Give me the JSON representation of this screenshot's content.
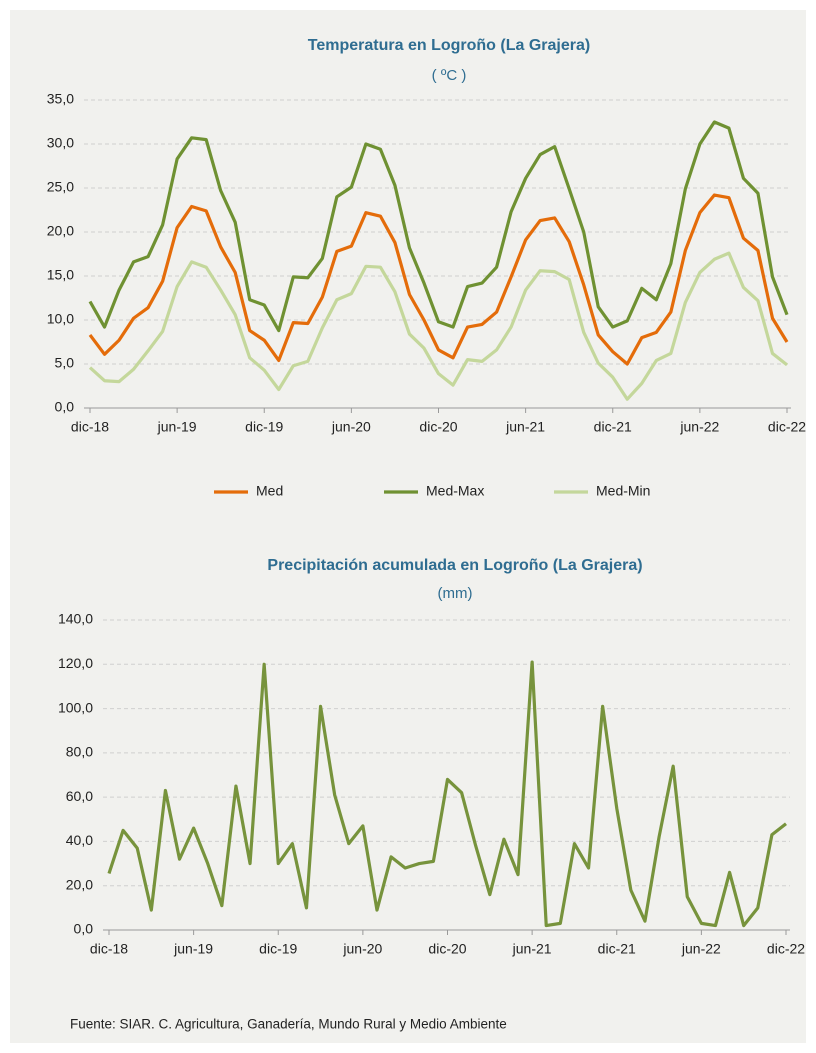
{
  "chart_data": [
    {
      "type": "line",
      "title": "Temperatura en Logroño (La Grajera)",
      "subtitle": "( ºC )",
      "categories": [
        "dic-18",
        null,
        null,
        null,
        null,
        null,
        "jun-19",
        null,
        null,
        null,
        null,
        null,
        "dic-19",
        null,
        null,
        null,
        null,
        null,
        "jun-20",
        null,
        null,
        null,
        null,
        null,
        "dic-20",
        null,
        null,
        null,
        null,
        null,
        "jun-21",
        null,
        null,
        null,
        null,
        null,
        "dic-21",
        null,
        null,
        null,
        null,
        null,
        "jun-22",
        null,
        null,
        null,
        null,
        null,
        "dic-22"
      ],
      "series": [
        {
          "name": "Med",
          "color": "#e46c0a",
          "values": [
            8.3,
            6.1,
            7.7,
            10.2,
            11.4,
            14.4,
            20.5,
            22.9,
            22.4,
            18.3,
            15.4,
            8.8,
            7.7,
            5.4,
            9.7,
            9.6,
            12.6,
            17.8,
            18.4,
            22.2,
            21.8,
            18.8,
            12.9,
            10.0,
            6.6,
            5.7,
            9.2,
            9.5,
            10.9,
            14.9,
            19.1,
            21.3,
            21.6,
            18.9,
            14.0,
            8.3,
            6.4,
            5.0,
            8.0,
            8.6,
            10.9,
            17.9,
            22.2,
            24.2,
            23.9,
            19.3,
            17.9,
            10.2,
            7.5
          ]
        },
        {
          "name": "Med-Max",
          "color": "#6f9132",
          "values": [
            12.1,
            9.2,
            13.4,
            16.6,
            17.2,
            20.8,
            28.3,
            30.7,
            30.5,
            24.7,
            21.1,
            12.3,
            11.7,
            8.8,
            14.9,
            14.8,
            17.0,
            24.0,
            25.1,
            30.0,
            29.4,
            25.3,
            18.2,
            14.2,
            9.8,
            9.2,
            13.8,
            14.2,
            16.0,
            22.3,
            26.1,
            28.8,
            29.7,
            24.9,
            20.0,
            11.5,
            9.2,
            9.9,
            13.6,
            12.3,
            16.4,
            24.9,
            30.0,
            32.5,
            31.8,
            26.1,
            24.4,
            14.9,
            10.6
          ]
        },
        {
          "name": "Med-Min",
          "color": "#c4d79b",
          "values": [
            4.6,
            3.1,
            3.0,
            4.4,
            6.5,
            8.7,
            13.8,
            16.6,
            16.0,
            13.4,
            10.6,
            5.7,
            4.3,
            2.1,
            4.8,
            5.3,
            9.1,
            12.3,
            13.0,
            16.1,
            16.0,
            13.2,
            8.4,
            6.8,
            3.9,
            2.6,
            5.5,
            5.3,
            6.6,
            9.2,
            13.4,
            15.6,
            15.5,
            14.6,
            8.6,
            5.1,
            3.5,
            1.0,
            2.8,
            5.4,
            6.2,
            12.0,
            15.4,
            16.9,
            17.6,
            13.7,
            12.2,
            6.2,
            4.9
          ]
        }
      ],
      "ylim": [
        0,
        35
      ],
      "yticks": [
        {
          "value": 0,
          "label": "0,0"
        },
        {
          "value": 5,
          "label": "5,0"
        },
        {
          "value": 10,
          "label": "10,0"
        },
        {
          "value": 15,
          "label": "15,0"
        },
        {
          "value": 20,
          "label": "20,0"
        },
        {
          "value": 25,
          "label": "25,0"
        },
        {
          "value": 30,
          "label": "30,0"
        },
        {
          "value": 35,
          "label": "35,0"
        }
      ],
      "grid": true,
      "legend": "bottom"
    },
    {
      "type": "line",
      "title": "Precipitación acumulada en Logroño (La Grajera)",
      "subtitle": "(mm)",
      "categories": [
        "dic-18",
        null,
        null,
        null,
        null,
        null,
        "jun-19",
        null,
        null,
        null,
        null,
        null,
        "dic-19",
        null,
        null,
        null,
        null,
        null,
        "jun-20",
        null,
        null,
        null,
        null,
        null,
        "dic-20",
        null,
        null,
        null,
        null,
        null,
        "jun-21",
        null,
        null,
        null,
        null,
        null,
        "dic-21",
        null,
        null,
        null,
        null,
        null,
        "jun-22",
        null,
        null,
        null,
        null,
        null,
        "dic-22"
      ],
      "series": [
        {
          "color": "#77933c",
          "values": [
            25.5,
            45,
            37,
            9,
            63,
            32,
            46,
            30,
            11,
            65,
            30,
            120,
            30,
            39,
            10,
            101,
            61,
            39,
            47,
            9,
            33,
            28,
            30,
            31,
            68,
            62,
            38,
            16,
            41,
            25,
            121,
            2,
            3,
            39,
            28,
            101,
            55,
            18,
            4,
            42,
            74,
            15,
            3,
            2,
            26,
            2,
            10,
            43,
            48
          ]
        }
      ],
      "ylim": [
        0,
        140
      ],
      "yticks": [
        {
          "value": 0,
          "label": "0,0"
        },
        {
          "value": 20,
          "label": "20,0"
        },
        {
          "value": 40,
          "label": "40,0"
        },
        {
          "value": 60,
          "label": "60,0"
        },
        {
          "value": 80,
          "label": "80,0"
        },
        {
          "value": 100,
          "label": "100,0"
        },
        {
          "value": 120,
          "label": "120,0"
        },
        {
          "value": 140,
          "label": "140,0"
        }
      ],
      "grid": true
    }
  ],
  "footer": "Fuente: SIAR. C. Agricultura, Ganadería, Mundo Rural y Medio Ambiente"
}
